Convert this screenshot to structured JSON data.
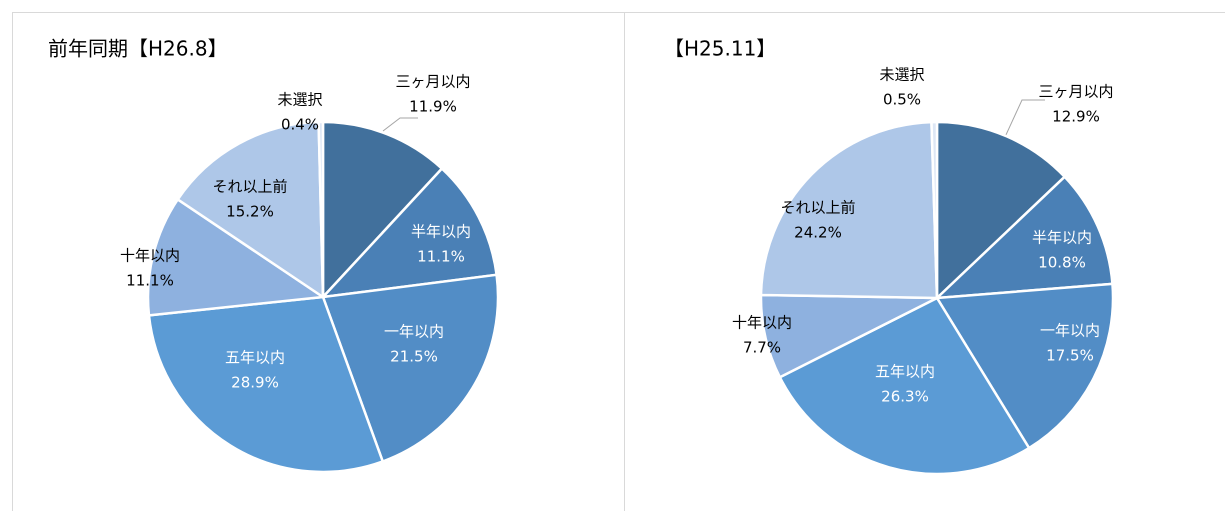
{
  "chart_data": [
    {
      "type": "pie",
      "title": "前年同期【H26.8】",
      "categories": [
        "三ヶ月以内",
        "半年以内",
        "一年以内",
        "五年以内",
        "十年以内",
        "それ以上前",
        "未選択"
      ],
      "values": [
        11.9,
        11.1,
        21.5,
        28.9,
        11.1,
        15.2,
        0.4
      ],
      "value_labels": [
        "11.9%",
        "11.1%",
        "21.5%",
        "28.9%",
        "11.1%",
        "15.2%",
        "0.4%"
      ],
      "colors": [
        "#41709c",
        "#4a80b6",
        "#528dc6",
        "#5b9bd5",
        "#8eb1df",
        "#aec7e8",
        "#dde7f5"
      ]
    },
    {
      "type": "pie",
      "title": "【H25.11】",
      "categories": [
        "三ヶ月以内",
        "半年以内",
        "一年以内",
        "五年以内",
        "十年以内",
        "それ以上前",
        "未選択"
      ],
      "values": [
        12.9,
        10.8,
        17.5,
        26.3,
        7.7,
        24.2,
        0.5
      ],
      "value_labels": [
        "12.9%",
        "10.8%",
        "17.5%",
        "26.3%",
        "7.7%",
        "24.2%",
        "0.5%"
      ],
      "colors": [
        "#41709c",
        "#4a80b6",
        "#528dc6",
        "#5b9bd5",
        "#8eb1df",
        "#aec7e8",
        "#dde7f5"
      ]
    }
  ]
}
